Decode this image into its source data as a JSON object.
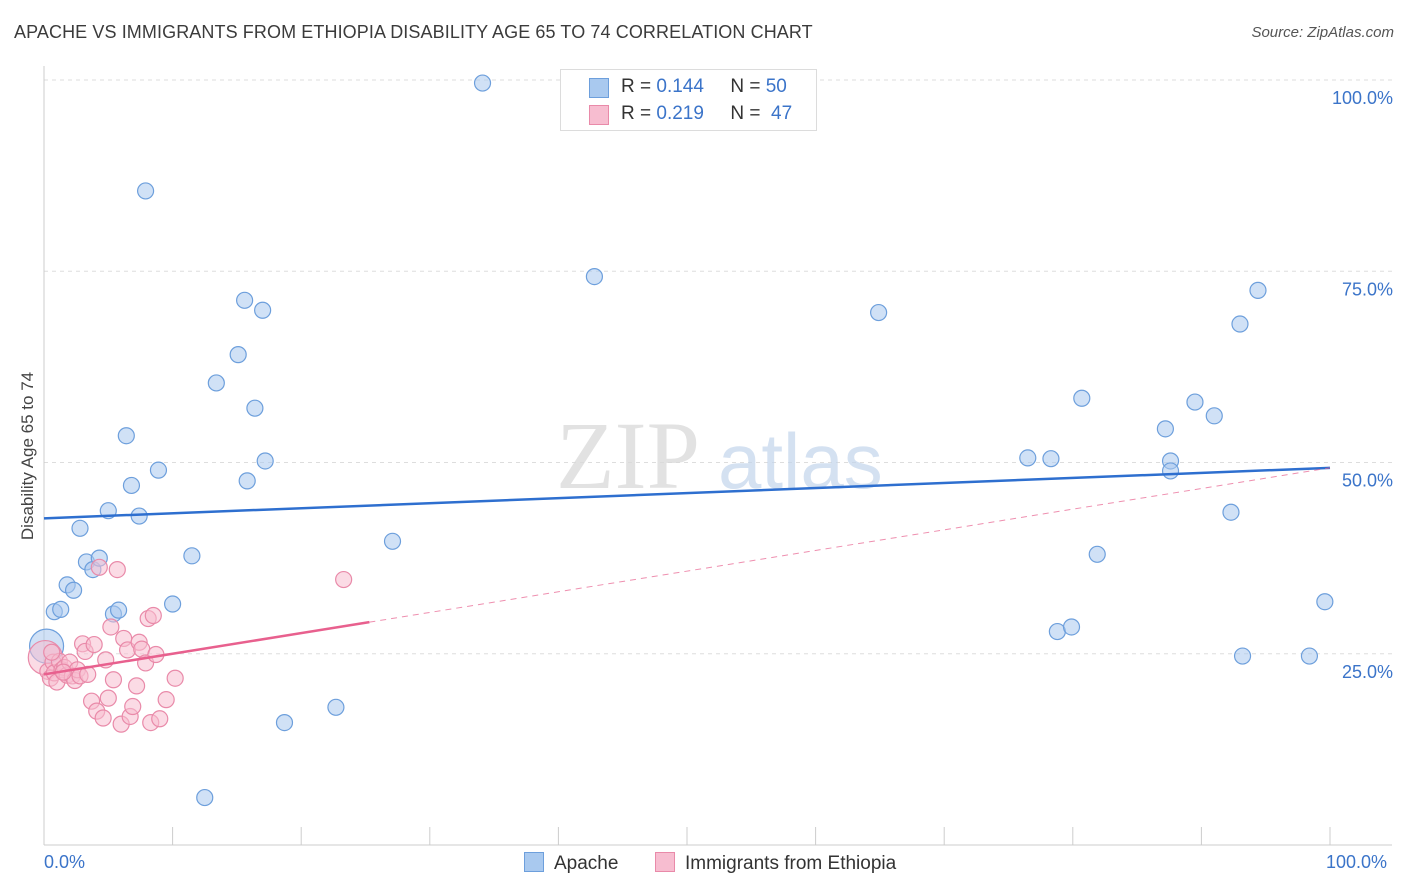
{
  "title": "APACHE VS IMMIGRANTS FROM ETHIOPIA DISABILITY AGE 65 TO 74 CORRELATION CHART",
  "source": "Source: ZipAtlas.com",
  "watermark": {
    "zip": "ZIP",
    "atlas": "atlas"
  },
  "legend": {
    "r_label": "R =",
    "n_label": "N =",
    "series": [
      {
        "name": "Apache",
        "r": "0.144",
        "n": "50",
        "color": "#a9c9ef",
        "stroke": "#6d9fdc"
      },
      {
        "name": "Immigrants from Ethiopia",
        "r": "0.219",
        "n": "47",
        "color": "#f7bdd0",
        "stroke": "#e98aa9"
      }
    ]
  },
  "chart_data": {
    "type": "scatter",
    "title": "APACHE VS IMMIGRANTS FROM ETHIOPIA DISABILITY AGE 65 TO 74 CORRELATION CHART",
    "xlabel": "",
    "ylabel": "Disability Age 65 to 74",
    "xlim": [
      0,
      100
    ],
    "ylim": [
      0,
      100
    ],
    "x_tick_labels": [
      "0.0%",
      "100.0%"
    ],
    "y_tick_labels": [
      "25.0%",
      "50.0%",
      "75.0%",
      "100.0%"
    ],
    "y_ticks": [
      25,
      50,
      75,
      100
    ],
    "grid": true,
    "legend_position": "top-center",
    "series": [
      {
        "name": "Apache",
        "color": "#a9c9ef",
        "stroke": "#6d9fdc",
        "line_color": "#2e6fcf",
        "trend": {
          "x1": 0,
          "y1": 42.7,
          "x2": 100,
          "y2": 49.3,
          "dashed_from": null
        },
        "points": [
          {
            "x": 0.2,
            "y": 26.0,
            "big": true
          },
          {
            "x": 0.8,
            "y": 30.5
          },
          {
            "x": 1.3,
            "y": 30.8
          },
          {
            "x": 1.8,
            "y": 34.0
          },
          {
            "x": 2.3,
            "y": 33.3
          },
          {
            "x": 2.8,
            "y": 41.4
          },
          {
            "x": 3.3,
            "y": 37.0
          },
          {
            "x": 3.8,
            "y": 36.0
          },
          {
            "x": 4.3,
            "y": 37.5
          },
          {
            "x": 5.0,
            "y": 43.7
          },
          {
            "x": 5.4,
            "y": 30.2
          },
          {
            "x": 5.8,
            "y": 30.7
          },
          {
            "x": 6.4,
            "y": 53.5
          },
          {
            "x": 6.8,
            "y": 47.0
          },
          {
            "x": 7.4,
            "y": 43.0
          },
          {
            "x": 7.9,
            "y": 85.5
          },
          {
            "x": 8.9,
            "y": 49.0
          },
          {
            "x": 10.0,
            "y": 31.5
          },
          {
            "x": 11.5,
            "y": 37.8
          },
          {
            "x": 12.5,
            "y": 6.2
          },
          {
            "x": 13.4,
            "y": 60.4
          },
          {
            "x": 15.1,
            "y": 64.1
          },
          {
            "x": 15.6,
            "y": 71.2
          },
          {
            "x": 15.8,
            "y": 47.6
          },
          {
            "x": 16.4,
            "y": 57.1
          },
          {
            "x": 17.0,
            "y": 69.9
          },
          {
            "x": 17.2,
            "y": 50.2
          },
          {
            "x": 18.7,
            "y": 16.0
          },
          {
            "x": 22.7,
            "y": 18.0
          },
          {
            "x": 27.1,
            "y": 39.7
          },
          {
            "x": 34.1,
            "y": 99.6
          },
          {
            "x": 42.8,
            "y": 74.3
          },
          {
            "x": 64.9,
            "y": 69.6
          },
          {
            "x": 76.5,
            "y": 50.6
          },
          {
            "x": 78.3,
            "y": 50.5
          },
          {
            "x": 78.8,
            "y": 27.9
          },
          {
            "x": 79.9,
            "y": 28.5
          },
          {
            "x": 80.7,
            "y": 58.4
          },
          {
            "x": 81.9,
            "y": 38.0
          },
          {
            "x": 87.2,
            "y": 54.4
          },
          {
            "x": 87.6,
            "y": 50.2
          },
          {
            "x": 87.6,
            "y": 48.9
          },
          {
            "x": 89.5,
            "y": 57.9
          },
          {
            "x": 91.0,
            "y": 56.1
          },
          {
            "x": 92.3,
            "y": 43.5
          },
          {
            "x": 93.0,
            "y": 68.1
          },
          {
            "x": 93.2,
            "y": 24.7
          },
          {
            "x": 94.4,
            "y": 72.5
          },
          {
            "x": 98.4,
            "y": 24.7
          },
          {
            "x": 99.6,
            "y": 31.8
          }
        ]
      },
      {
        "name": "Immigrants from Ethiopia",
        "color": "#f7bdd0",
        "stroke": "#e98aa9",
        "line_color": "#e8608e",
        "trend": {
          "x1": 0,
          "y1": 22.3,
          "x2": 100,
          "y2": 49.3,
          "dashed_from": 25.3
        },
        "points": [
          {
            "x": 0.1,
            "y": 24.5,
            "big": true
          },
          {
            "x": 0.3,
            "y": 22.7
          },
          {
            "x": 0.5,
            "y": 21.8
          },
          {
            "x": 0.7,
            "y": 23.9
          },
          {
            "x": 0.8,
            "y": 22.5
          },
          {
            "x": 1.0,
            "y": 21.3
          },
          {
            "x": 1.2,
            "y": 24.0
          },
          {
            "x": 1.4,
            "y": 22.9
          },
          {
            "x": 1.6,
            "y": 23.2
          },
          {
            "x": 1.8,
            "y": 22.2
          },
          {
            "x": 2.0,
            "y": 23.9
          },
          {
            "x": 2.2,
            "y": 22.1
          },
          {
            "x": 2.4,
            "y": 21.5
          },
          {
            "x": 2.6,
            "y": 22.9
          },
          {
            "x": 2.8,
            "y": 22.1
          },
          {
            "x": 3.0,
            "y": 26.3
          },
          {
            "x": 3.2,
            "y": 25.3
          },
          {
            "x": 3.4,
            "y": 22.3
          },
          {
            "x": 3.7,
            "y": 18.8
          },
          {
            "x": 3.9,
            "y": 26.2
          },
          {
            "x": 4.1,
            "y": 17.5
          },
          {
            "x": 4.3,
            "y": 36.3
          },
          {
            "x": 4.6,
            "y": 16.6
          },
          {
            "x": 4.8,
            "y": 24.2
          },
          {
            "x": 5.0,
            "y": 19.2
          },
          {
            "x": 5.2,
            "y": 28.5
          },
          {
            "x": 5.4,
            "y": 21.6
          },
          {
            "x": 5.7,
            "y": 36.0
          },
          {
            "x": 6.0,
            "y": 15.8
          },
          {
            "x": 6.2,
            "y": 27.0
          },
          {
            "x": 6.5,
            "y": 25.5
          },
          {
            "x": 6.7,
            "y": 16.8
          },
          {
            "x": 6.9,
            "y": 18.1
          },
          {
            "x": 7.2,
            "y": 20.8
          },
          {
            "x": 7.4,
            "y": 26.5
          },
          {
            "x": 7.6,
            "y": 25.6
          },
          {
            "x": 7.9,
            "y": 23.8
          },
          {
            "x": 8.1,
            "y": 29.6
          },
          {
            "x": 8.3,
            "y": 16.0
          },
          {
            "x": 8.5,
            "y": 30.0
          },
          {
            "x": 8.7,
            "y": 24.9
          },
          {
            "x": 9.0,
            "y": 16.5
          },
          {
            "x": 9.5,
            "y": 19.0
          },
          {
            "x": 10.2,
            "y": 21.8
          },
          {
            "x": 23.3,
            "y": 34.7
          },
          {
            "x": 0.6,
            "y": 25.2
          },
          {
            "x": 1.5,
            "y": 22.6
          }
        ]
      }
    ]
  }
}
